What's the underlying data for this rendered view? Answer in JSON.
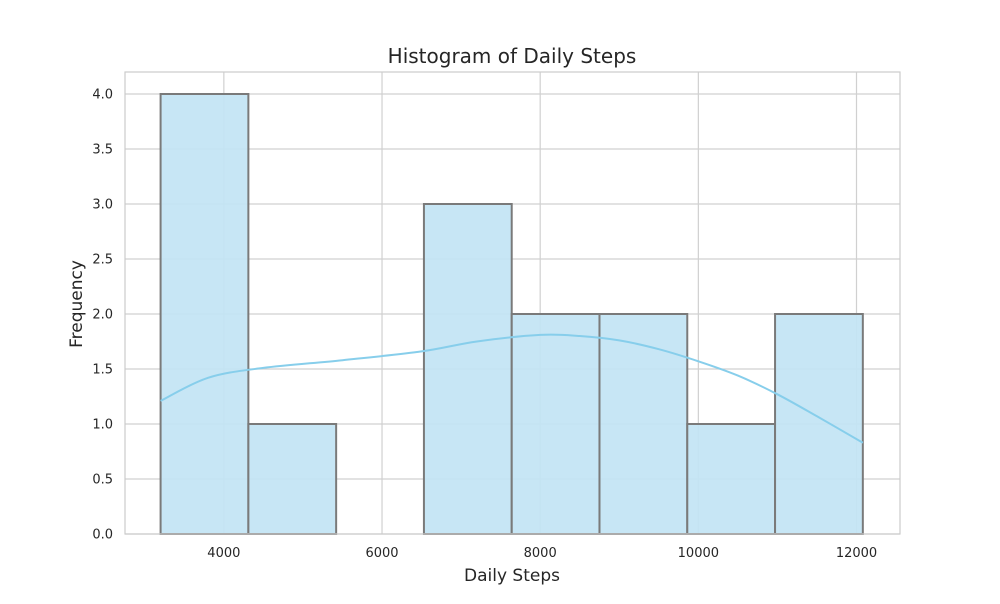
{
  "chart_data": {
    "type": "bar",
    "title": "Histogram of Daily Steps",
    "xlabel": "Daily Steps",
    "ylabel": "Frequency",
    "xlim": [
      2750,
      12550
    ],
    "ylim": [
      0,
      4.2
    ],
    "x_ticks": [
      4000,
      6000,
      8000,
      10000,
      12000
    ],
    "y_ticks": [
      0.0,
      0.5,
      1.0,
      1.5,
      2.0,
      2.5,
      3.0,
      3.5,
      4.0
    ],
    "grid": true,
    "bins": [
      {
        "start": 3200,
        "end": 4310,
        "count": 4
      },
      {
        "start": 4310,
        "end": 5420,
        "count": 1
      },
      {
        "start": 5420,
        "end": 6530,
        "count": 0
      },
      {
        "start": 6530,
        "end": 7640,
        "count": 3
      },
      {
        "start": 7640,
        "end": 8750,
        "count": 2
      },
      {
        "start": 8750,
        "end": 9860,
        "count": 2
      },
      {
        "start": 9860,
        "end": 10970,
        "count": 1
      },
      {
        "start": 10970,
        "end": 12080,
        "count": 2
      }
    ],
    "kde": {
      "x": [
        3200,
        3800,
        4500,
        5500,
        6500,
        7200,
        8000,
        8500,
        9000,
        9500,
        10000,
        10500,
        11000,
        11500,
        12080
      ],
      "y": [
        1.21,
        1.42,
        1.51,
        1.58,
        1.66,
        1.75,
        1.81,
        1.8,
        1.76,
        1.68,
        1.57,
        1.44,
        1.27,
        1.07,
        0.83
      ]
    },
    "colors": {
      "bar_fill": "#c2e4f4",
      "bar_edge": "#7a7a7a",
      "kde_line": "#87ceeb",
      "grid": "#d0d0d0",
      "frame": "#cccccc"
    }
  }
}
